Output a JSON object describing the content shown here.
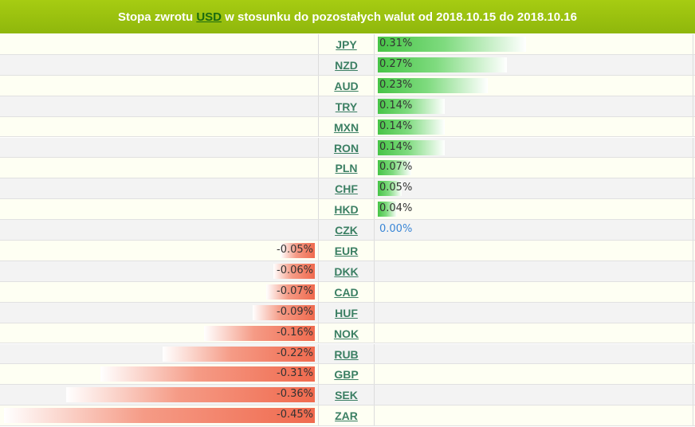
{
  "colors": {
    "header": "#9cc30f",
    "row_odd": "#fefff3",
    "row_even": "#f3f3f3",
    "positive": "#47c447",
    "negative": "#f06a4e",
    "zero": "#3a86d6"
  },
  "chart_data": {
    "type": "bar",
    "title_prefix": "Stopa zwrotu",
    "base_currency": "USD",
    "title_suffix": "w stosunku do pozostałych walut od 2018.10.15 do 2018.10.16",
    "categories": [
      "JPY",
      "NZD",
      "AUD",
      "TRY",
      "MXN",
      "RON",
      "PLN",
      "CHF",
      "HKD",
      "CZK",
      "EUR",
      "DKK",
      "CAD",
      "HUF",
      "NOK",
      "RUB",
      "GBP",
      "SEK",
      "ZAR"
    ],
    "values": [
      0.31,
      0.27,
      0.23,
      0.14,
      0.14,
      0.14,
      0.07,
      0.05,
      0.04,
      0.0,
      -0.05,
      -0.06,
      -0.07,
      -0.09,
      -0.16,
      -0.22,
      -0.31,
      -0.36,
      -0.45
    ],
    "labels": [
      "0.31%",
      "0.27%",
      "0.23%",
      "0.14%",
      "0.14%",
      "0.14%",
      "0.07%",
      "0.05%",
      "0.04%",
      "0.00%",
      "-0.05%",
      "-0.06%",
      "-0.07%",
      "-0.09%",
      "-0.16%",
      "-0.22%",
      "-0.31%",
      "-0.36%",
      "-0.45%"
    ],
    "max_abs": 0.45
  }
}
